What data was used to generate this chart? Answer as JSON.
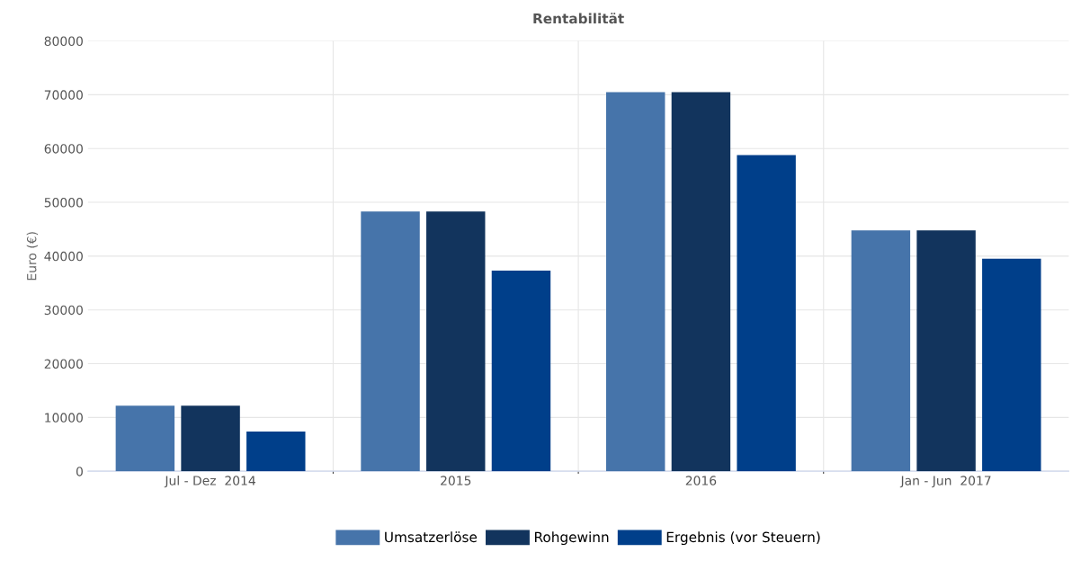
{
  "chart_data": {
    "type": "bar",
    "title": "Rentabilität",
    "ylabel": "Euro (€)",
    "categories": [
      "Jul - Dez  2014",
      "2015",
      "2016",
      "Jan - Jun  2017"
    ],
    "series": [
      {
        "name": "Umsatzerlöse",
        "color": "#4674aa",
        "values": [
          12200,
          48300,
          70500,
          44800
        ]
      },
      {
        "name": "Rohgewinn",
        "color": "#12345d",
        "values": [
          12200,
          48300,
          70500,
          44800
        ]
      },
      {
        "name": "Ergebnis (vor Steuern)",
        "color": "#003f8a",
        "values": [
          7400,
          37300,
          58800,
          39500
        ]
      }
    ],
    "ylim": [
      0,
      80000
    ],
    "yticks": [
      0,
      10000,
      20000,
      30000,
      40000,
      50000,
      60000,
      70000,
      80000
    ],
    "grid": true,
    "legend": "bottom"
  }
}
